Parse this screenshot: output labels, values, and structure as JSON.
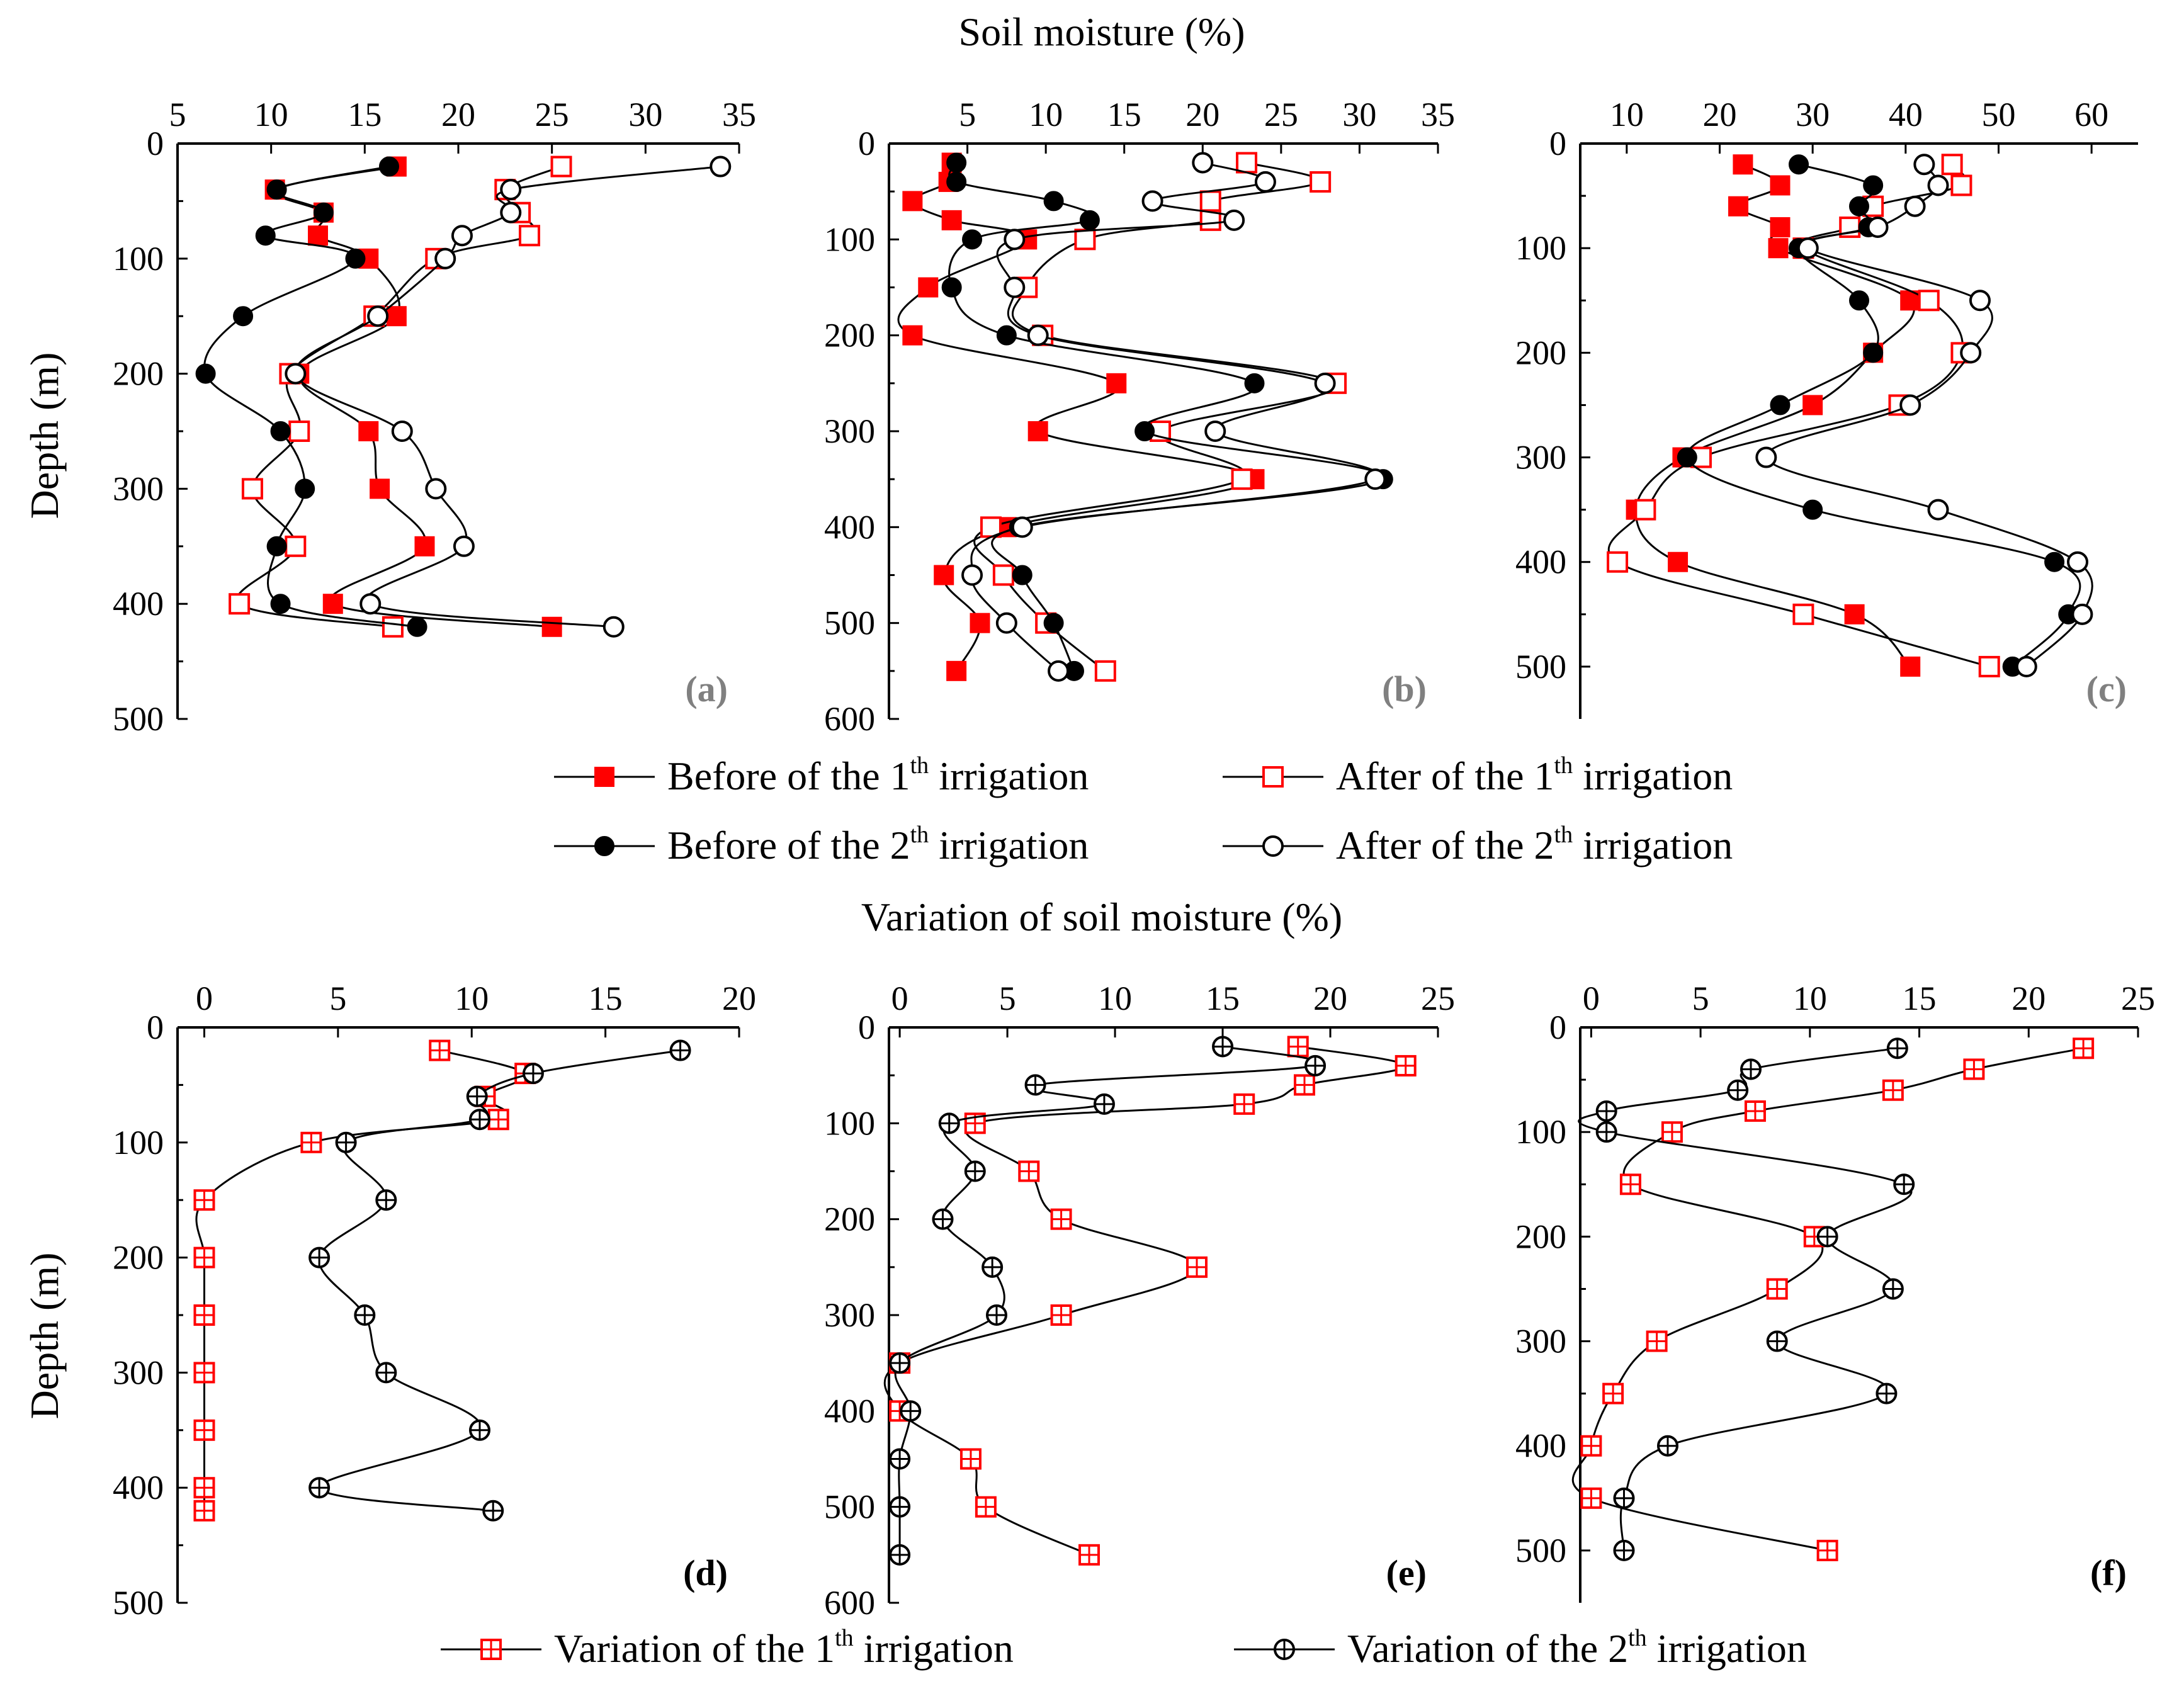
{
  "figure": {
    "top_title": "Soil moisture (%)",
    "bottom_title": "Variation of soil moisture (%)",
    "ylabel": "Depth (m)"
  },
  "legend_top": [
    {
      "pre": "Before of the 1",
      "sup": "th",
      "post": " irrigation",
      "marker": "filled-square",
      "color": "#ff0000"
    },
    {
      "pre": "After of the 1",
      "sup": "th",
      "post": " irrigation",
      "marker": "open-square",
      "color": "#ff0000"
    },
    {
      "pre": "Before of the 2",
      "sup": "th",
      "post": " irrigation",
      "marker": "filled-circle",
      "color": "#000000"
    },
    {
      "pre": "After of the 2",
      "sup": "th",
      "post": " irrigation",
      "marker": "open-circle",
      "color": "#000000"
    }
  ],
  "legend_bottom": [
    {
      "pre": "Variation of the 1",
      "sup": "th",
      "post": " irrigation",
      "marker": "square-plus",
      "color": "#ff0000"
    },
    {
      "pre": "Variation of the 2",
      "sup": "th",
      "post": " irrigation",
      "marker": "circle-plus",
      "color": "#000000"
    }
  ],
  "chart_data": [
    {
      "type": "line",
      "label": "(a)",
      "xlabel": "Soil moisture (%)",
      "ylabel": "Depth (m)",
      "xlim": [
        5,
        35
      ],
      "ylim": [
        0,
        500
      ],
      "xticks": [
        5,
        10,
        15,
        20,
        25,
        30,
        35
      ],
      "yticks": [
        0,
        100,
        200,
        300,
        400,
        500
      ],
      "series": [
        {
          "name": "Before of the 1th irrigation",
          "x": [
            16.7,
            10.2,
            12.8,
            12.5,
            15.2,
            16.7,
            11.5,
            15.2,
            15.8,
            18.2,
            13.3,
            25.0
          ],
          "y": [
            20,
            40,
            60,
            80,
            100,
            150,
            200,
            250,
            300,
            350,
            400,
            420
          ]
        },
        {
          "name": "After of the 1th irrigation",
          "x": [
            25.5,
            22.5,
            23.3,
            23.8,
            18.8,
            15.5,
            11.0,
            11.5,
            9.0,
            11.3,
            8.3,
            16.5
          ],
          "y": [
            20,
            40,
            60,
            80,
            100,
            150,
            200,
            250,
            300,
            350,
            400,
            420
          ]
        },
        {
          "name": "Before of the 2th irrigation",
          "x": [
            16.3,
            10.3,
            12.8,
            9.7,
            14.5,
            8.5,
            6.5,
            10.5,
            11.8,
            10.3,
            10.5,
            17.8
          ],
          "y": [
            20,
            40,
            60,
            80,
            100,
            150,
            200,
            250,
            300,
            350,
            400,
            420
          ]
        },
        {
          "name": "After of the 2th irrigation",
          "x": [
            34.0,
            22.8,
            22.8,
            20.2,
            19.3,
            15.7,
            11.3,
            17.0,
            18.8,
            20.3,
            15.3,
            28.3
          ],
          "y": [
            20,
            40,
            60,
            80,
            100,
            150,
            200,
            250,
            300,
            350,
            400,
            420
          ]
        }
      ]
    },
    {
      "type": "line",
      "label": "(b)",
      "xlabel": "Soil moisture (%)",
      "ylabel": "Depth (m)",
      "xlim": [
        0,
        35
      ],
      "ylim": [
        0,
        600
      ],
      "xticks": [
        5,
        10,
        15,
        20,
        25,
        30,
        35
      ],
      "yticks": [
        0,
        100,
        200,
        300,
        400,
        500,
        600
      ],
      "series": [
        {
          "name": "Before of the 1th irrigation",
          "x": [
            4.0,
            3.8,
            1.5,
            4.0,
            8.8,
            2.5,
            1.5,
            14.5,
            9.5,
            23.3,
            7.5,
            3.5,
            5.8,
            4.3
          ],
          "y": [
            20,
            40,
            60,
            80,
            100,
            150,
            200,
            250,
            300,
            350,
            400,
            450,
            500,
            550
          ]
        },
        {
          "name": "After of the 1th irrigation",
          "x": [
            22.8,
            27.5,
            20.5,
            20.5,
            12.5,
            8.8,
            9.8,
            28.5,
            17.3,
            22.5,
            6.5,
            7.3,
            10.0,
            13.8
          ],
          "y": [
            20,
            40,
            60,
            80,
            100,
            150,
            200,
            250,
            300,
            350,
            400,
            450,
            500,
            550
          ]
        },
        {
          "name": "Before of the 2th irrigation",
          "x": [
            4.3,
            4.3,
            10.5,
            12.8,
            5.3,
            4.0,
            7.5,
            23.3,
            16.3,
            31.5,
            8.3,
            8.5,
            10.5,
            11.8
          ],
          "y": [
            20,
            40,
            60,
            80,
            100,
            150,
            200,
            250,
            300,
            350,
            400,
            450,
            500,
            550
          ]
        },
        {
          "name": "After of the 2th irrigation",
          "x": [
            20.0,
            24.0,
            16.8,
            22.0,
            8.0,
            8.0,
            9.5,
            27.8,
            20.8,
            31.0,
            8.5,
            5.3,
            7.5,
            10.8
          ],
          "y": [
            20,
            40,
            60,
            80,
            100,
            150,
            200,
            250,
            300,
            350,
            400,
            450,
            500,
            550
          ]
        }
      ]
    },
    {
      "type": "line",
      "label": "(c)",
      "xlabel": "Soil moisture (%)",
      "ylabel": "Depth (m)",
      "xlim": [
        5,
        65
      ],
      "ylim": [
        0,
        550
      ],
      "xticks": [
        10,
        20,
        30,
        40,
        50,
        60
      ],
      "yticks": [
        0,
        100,
        200,
        300,
        400,
        500
      ],
      "series": [
        {
          "name": "Before of the 1th irrigation",
          "x": [
            22.5,
            26.5,
            22.0,
            26.5,
            26.3,
            40.5,
            36.5,
            30.0,
            16.0,
            11.0,
            15.5,
            34.5,
            40.5
          ],
          "y": [
            20,
            40,
            60,
            80,
            100,
            150,
            200,
            250,
            300,
            350,
            400,
            450,
            500
          ]
        },
        {
          "name": "After of the 1th irrigation",
          "x": [
            45.0,
            46.0,
            36.5,
            34.0,
            29.0,
            42.5,
            46.0,
            39.3,
            18.0,
            12.0,
            9.0,
            29.0,
            49.0
          ],
          "y": [
            20,
            40,
            60,
            80,
            100,
            150,
            200,
            250,
            300,
            350,
            400,
            450,
            500
          ]
        },
        {
          "name": "Before of the 2th irrigation",
          "x": [
            28.5,
            36.5,
            35.0,
            36.0,
            28.5,
            35.0,
            36.5,
            26.5,
            16.5,
            30.0,
            56.0,
            57.5,
            51.5
          ],
          "y": [
            20,
            40,
            60,
            80,
            100,
            150,
            200,
            250,
            300,
            350,
            400,
            450,
            500
          ]
        },
        {
          "name": "After of the 2th irrigation",
          "x": [
            42.0,
            43.5,
            41.0,
            37.0,
            29.5,
            48.0,
            47.0,
            40.5,
            25.0,
            43.5,
            58.5,
            59.0,
            53.0
          ],
          "y": [
            20,
            40,
            60,
            80,
            100,
            150,
            200,
            250,
            300,
            350,
            400,
            450,
            500
          ]
        }
      ]
    },
    {
      "type": "line",
      "label": "(d)",
      "xlabel": "Variation of soil moisture (%)",
      "ylabel": "Depth (m)",
      "xlim": [
        -1,
        20
      ],
      "ylim": [
        0,
        500
      ],
      "xticks": [
        0,
        5,
        10,
        15,
        20
      ],
      "yticks": [
        0,
        100,
        200,
        300,
        400,
        500
      ],
      "series": [
        {
          "name": "Variation of the 1th irrigation",
          "x": [
            8.8,
            12.0,
            10.5,
            11.0,
            4.0,
            0.0,
            0.0,
            0.0,
            0.0,
            0.0,
            0.0,
            0.0
          ],
          "y": [
            20,
            40,
            60,
            80,
            100,
            150,
            200,
            250,
            300,
            350,
            400,
            420
          ]
        },
        {
          "name": "Variation of the 2th irrigation",
          "x": [
            17.8,
            12.3,
            10.2,
            10.3,
            5.3,
            6.8,
            4.3,
            6.0,
            6.8,
            10.3,
            4.3,
            10.8
          ],
          "y": [
            20,
            40,
            60,
            80,
            100,
            150,
            200,
            250,
            300,
            350,
            400,
            420
          ]
        }
      ]
    },
    {
      "type": "line",
      "label": "(e)",
      "xlabel": "Variation of soil moisture (%)",
      "ylabel": "Depth (m)",
      "xlim": [
        -0.5,
        25
      ],
      "ylim": [
        0,
        600
      ],
      "xticks": [
        0,
        5,
        10,
        15,
        20,
        25
      ],
      "yticks": [
        0,
        100,
        200,
        300,
        400,
        500,
        600
      ],
      "series": [
        {
          "name": "Variation of the 1th irrigation",
          "x": [
            18.5,
            23.5,
            18.8,
            16.0,
            3.5,
            6.0,
            7.5,
            13.8,
            7.5,
            0.0,
            0.0,
            3.3,
            4.0,
            8.8
          ],
          "y": [
            20,
            40,
            60,
            80,
            100,
            150,
            200,
            250,
            300,
            350,
            400,
            450,
            500,
            550
          ]
        },
        {
          "name": "Variation of the 2th irrigation",
          "x": [
            15.0,
            19.3,
            6.3,
            9.5,
            2.3,
            3.5,
            2.0,
            4.3,
            4.5,
            0.0,
            0.5,
            0.0,
            0.0,
            0.0
          ],
          "y": [
            20,
            40,
            60,
            80,
            100,
            150,
            200,
            250,
            300,
            350,
            400,
            450,
            500,
            550
          ]
        }
      ]
    },
    {
      "type": "line",
      "label": "(f)",
      "xlabel": "Variation of soil moisture (%)",
      "ylabel": "Depth (m)",
      "xlim": [
        -0.5,
        25
      ],
      "ylim": [
        0,
        550
      ],
      "xticks": [
        0,
        5,
        10,
        15,
        20,
        25
      ],
      "yticks": [
        0,
        100,
        200,
        300,
        400,
        500
      ],
      "series": [
        {
          "name": "Variation of the 1th irrigation",
          "x": [
            22.5,
            17.5,
            13.8,
            7.5,
            3.7,
            1.8,
            10.2,
            8.5,
            3.0,
            1.0,
            0.0,
            0.0,
            10.8
          ],
          "y": [
            20,
            40,
            60,
            80,
            100,
            150,
            200,
            250,
            300,
            350,
            400,
            450,
            500
          ]
        },
        {
          "name": "Variation of the 2th irrigation",
          "x": [
            14.0,
            7.3,
            6.7,
            0.7,
            0.7,
            14.3,
            10.8,
            13.8,
            8.5,
            13.5,
            3.5,
            1.5,
            1.5
          ],
          "y": [
            20,
            40,
            60,
            80,
            100,
            150,
            200,
            250,
            300,
            350,
            400,
            450,
            500
          ]
        }
      ]
    }
  ]
}
